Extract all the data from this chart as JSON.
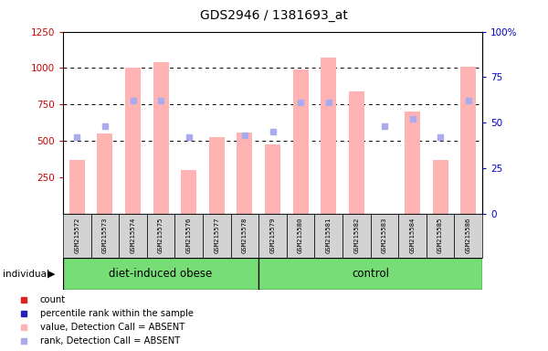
{
  "title": "GDS2946 / 1381693_at",
  "samples": [
    "GSM215572",
    "GSM215573",
    "GSM215574",
    "GSM215575",
    "GSM215576",
    "GSM215577",
    "GSM215578",
    "GSM215579",
    "GSM215580",
    "GSM215581",
    "GSM215582",
    "GSM215583",
    "GSM215584",
    "GSM215585",
    "GSM215586"
  ],
  "groups": [
    "diet-induced obese",
    "control"
  ],
  "group_split": 7,
  "absent_bar_values": [
    370,
    550,
    1000,
    1040,
    305,
    530,
    560,
    480,
    990,
    1070,
    840,
    null,
    700,
    370,
    1010
  ],
  "absent_rank_pct": [
    42,
    48,
    62,
    62,
    42,
    null,
    43,
    45,
    61,
    61,
    null,
    48,
    52,
    42,
    62
  ],
  "present_bar_values": [
    null,
    null,
    null,
    null,
    null,
    null,
    null,
    null,
    null,
    null,
    null,
    null,
    null,
    null,
    null
  ],
  "present_rank_pct": [
    null,
    null,
    null,
    null,
    null,
    null,
    null,
    null,
    null,
    null,
    null,
    null,
    null,
    null,
    null
  ],
  "ylim_left": [
    0,
    1250
  ],
  "ylim_right": [
    0,
    100
  ],
  "yticks_left": [
    250,
    500,
    750,
    1000,
    1250
  ],
  "yticks_right": [
    0,
    25,
    50,
    75,
    100
  ],
  "absent_bar_color": "#ffb3b3",
  "absent_rank_color": "#aaaaee",
  "present_bar_color": "#dd2222",
  "present_rank_color": "#2222bb",
  "bg_plot": "#ffffff",
  "bg_label": "#d3d3d3",
  "bg_group": "#77dd77",
  "ylabel_left_color": "#cc0000",
  "ylabel_right_color": "#0000cc"
}
